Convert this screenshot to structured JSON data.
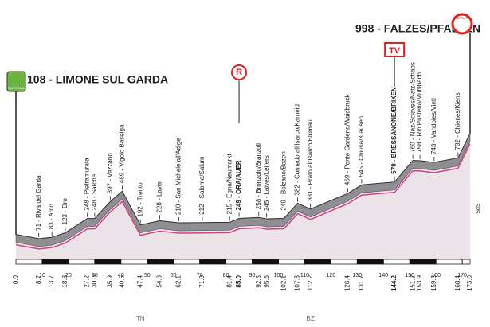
{
  "chart_data": {
    "type": "profile",
    "start_label": "108 - LIMONE SUL GARDA",
    "finish_label": "998 - FALZES/PFALZEN",
    "start_badge": "PARTENZA",
    "finish_badge": "ARRIVO",
    "markers": [
      {
        "label": "R",
        "point": 13,
        "color": "#e2211c"
      },
      {
        "label": "TV",
        "point": 21,
        "color": "#e2211c"
      }
    ],
    "x": [
      0.0,
      8.7,
      13.7,
      18.8,
      27.2,
      30.0,
      35.9,
      40.5,
      47.4,
      54.8,
      62.1,
      71.0,
      81.4,
      85.0,
      92.5,
      95.5,
      102.1,
      107.3,
      112.2,
      126.4,
      131.7,
      144.2,
      151.2,
      153.9,
      159.3,
      168.4,
      173.0
    ],
    "x_labels": [
      "0.0",
      "8.7",
      "13.7",
      "18.8",
      "27.2",
      "30.0",
      "35.9",
      "40.5",
      "47.4",
      "54.8",
      "62.1",
      "71.0",
      "81.4",
      "85.0",
      "92.5",
      "95.5",
      "102.1",
      "107.3",
      "112.2",
      "126.4",
      "131.7",
      "144.2",
      "151.2",
      "153.9",
      "159.3",
      "168.4",
      "173.0"
    ],
    "values": [
      108,
      71,
      83,
      123,
      248,
      248,
      397,
      489,
      192,
      228,
      210,
      212,
      215,
      249,
      258,
      245,
      249,
      382,
      331,
      469,
      545,
      570,
      760,
      758,
      743,
      782,
      998
    ],
    "point_labels": [
      null,
      "71 - Riva del Garda",
      "83 - Arco",
      "123 - Dro",
      "248 - Pietramurata",
      "248 - Sarche",
      "397 - Vezzano",
      "489 - Vigolo Baselga",
      "192 - Trento",
      "228 - Lavis",
      "210 - San Michele all'Adige",
      "212 - Salorno/Salurn",
      "215 - Egna/Neumarkt",
      "249 - ORA/AUER",
      "258 - Bronzolo/Branzoll",
      "245 - Laives/Leifers",
      "249 - Bolzano/Bozen",
      "382 - Cornedo all'Isarco/Karneid",
      "331 - Prato all'Isarco/Blumau",
      "469 - Ponte Gardena/Waidbruck",
      "545 - Chiusa/Klausen",
      "570 - BRESSANONE/BRIXEN",
      "760 - Naz-Sciaves/Natz-Schabs",
      "758 - Rio Pusteria/Mühlbach",
      "743 - Vandoies/Vintl",
      "782 - Chienes/Kiens",
      null
    ],
    "bold_points": [
      13,
      21
    ],
    "xlim": [
      0,
      173
    ],
    "ylim": [
      0,
      1900
    ],
    "xticks": [
      10,
      20,
      30,
      40,
      50,
      60,
      70,
      80,
      90,
      100,
      110,
      120,
      130,
      140,
      150,
      160,
      170
    ],
    "regions": [
      {
        "label": "TN",
        "x": 47.4
      },
      {
        "label": "BZ",
        "x": 112.2
      }
    ],
    "sign": "SdS"
  }
}
